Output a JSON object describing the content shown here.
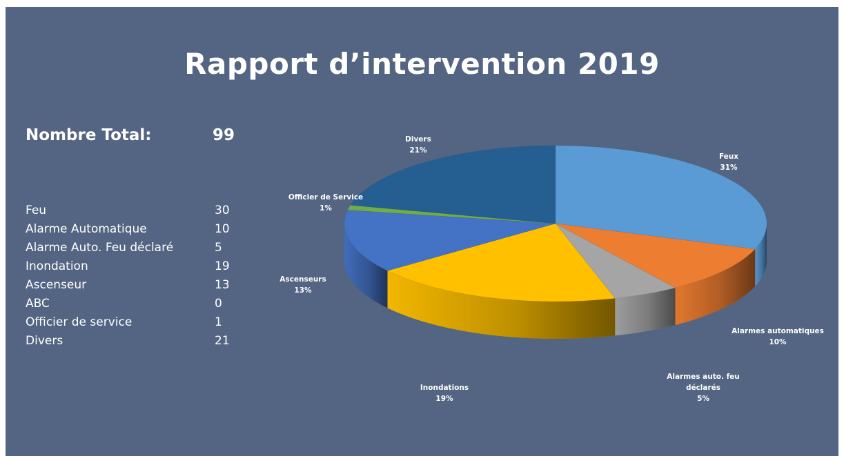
{
  "title": "Rapport d’intervention 2019",
  "summary": {
    "total_label": "Nombre Total:",
    "total_value": "99"
  },
  "table": [
    {
      "label": "Feu",
      "value": "30"
    },
    {
      "label": "Alarme Automatique",
      "value": "10"
    },
    {
      "label": "Alarme Auto. Feu déclaré",
      "value": "5"
    },
    {
      "label": "Inondation",
      "value": "19"
    },
    {
      "label": "Ascenseur",
      "value": "13"
    },
    {
      "label": "ABC",
      "value": "0"
    },
    {
      "label": "Officier de service",
      "value": "1"
    },
    {
      "label": "Divers",
      "value": "21"
    }
  ],
  "chart_data": {
    "type": "pie",
    "style": "3d",
    "slices": [
      {
        "label": [
          "Feux"
        ],
        "value": 30,
        "percent": "31%",
        "color": "#5b9bd5"
      },
      {
        "label": [
          "Alarmes automatiques"
        ],
        "value": 10,
        "percent": "10%",
        "color": "#ed7d31"
      },
      {
        "label": [
          "Alarmes auto. feu",
          "déclarés"
        ],
        "value": 5,
        "percent": "5%",
        "color": "#a5a5a5"
      },
      {
        "label": [
          "Inondations"
        ],
        "value": 19,
        "percent": "19%",
        "color": "#ffc000"
      },
      {
        "label": [
          "Ascenseurs"
        ],
        "value": 13,
        "percent": "13%",
        "color": "#4472c4"
      },
      {
        "label": [
          "Officier de Service"
        ],
        "value": 1,
        "percent": "1%",
        "color": "#70ad47"
      },
      {
        "label": [
          "Divers"
        ],
        "value": 21,
        "percent": "21%",
        "color": "#255e91"
      }
    ]
  },
  "colors": {
    "background": "#536582",
    "text": "#ffffff"
  }
}
